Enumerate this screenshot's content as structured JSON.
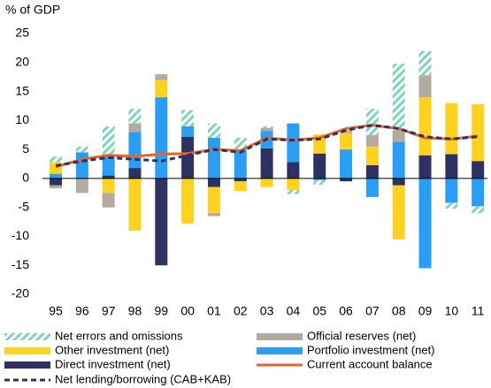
{
  "chart_data": {
    "type": "bar",
    "title": "% of GDP",
    "categories": [
      "95",
      "96",
      "97",
      "98",
      "99",
      "00",
      "01",
      "02",
      "03",
      "04",
      "05",
      "06",
      "07",
      "08",
      "09",
      "10",
      "11"
    ],
    "ylim": [
      -20,
      25
    ],
    "yticks": [
      -20,
      -15,
      -10,
      -5,
      0,
      5,
      10,
      15,
      20,
      25
    ],
    "series": [
      {
        "name": "Net errors and omissions",
        "color": "#7fd3bd",
        "kind": "bar",
        "hatched": true,
        "values": [
          1,
          1,
          5,
          2.5,
          0,
          2.8,
          2.5,
          2,
          0.3,
          -0.7,
          -0.8,
          0,
          4.5,
          11.5,
          4.2,
          -1,
          -1.2
        ]
      },
      {
        "name": "Official reserves (net)",
        "color": "#b3aaa2",
        "kind": "bar",
        "values": [
          -0.5,
          -2.5,
          -2.5,
          1.5,
          1,
          0,
          -0.5,
          0,
          0.5,
          0,
          0,
          0.5,
          2,
          2,
          3.8,
          0,
          0
        ]
      },
      {
        "name": "Other investment (net)",
        "color": "#ffd21f",
        "kind": "bar",
        "values": [
          2,
          0,
          -2.5,
          -9,
          3,
          -7.8,
          -4.5,
          -1.7,
          -1.5,
          -2,
          3.3,
          2.8,
          3.2,
          -9.3,
          10,
          8.8,
          9.8
        ]
      },
      {
        "name": "Portfolio investment (net)",
        "color": "#2a9df4",
        "kind": "bar",
        "values": [
          0.8,
          4.5,
          3.5,
          6.2,
          14,
          1.8,
          7,
          5,
          3,
          6.7,
          -0.3,
          5,
          -3.2,
          6.3,
          -15.5,
          -4.2,
          -4.8
        ]
      },
      {
        "name": "Direct investment (net)",
        "color": "#2e3162",
        "kind": "bar",
        "values": [
          -1.2,
          0,
          0.5,
          1.8,
          -15,
          7.2,
          -1.5,
          -0.5,
          5.2,
          2.8,
          4.3,
          -0.5,
          2.3,
          -1.2,
          4,
          4.2,
          3
        ]
      },
      {
        "name": "Current account balance",
        "color": "#e8622a",
        "kind": "line",
        "values": [
          2,
          3.3,
          4,
          3.8,
          4.2,
          4.3,
          5,
          4.8,
          7,
          6.6,
          7,
          8.6,
          9.2,
          8.6,
          7,
          6.8,
          7.3
        ]
      },
      {
        "name": "Net lending/borrowing (CAB+KAB)",
        "color": "#2e3162",
        "kind": "line",
        "dashed": true,
        "values": [
          2.2,
          3,
          3.6,
          3.3,
          3,
          4,
          5,
          4.5,
          6.8,
          6.6,
          6.8,
          8.3,
          9.2,
          8.6,
          7.2,
          6.8,
          7.2
        ]
      }
    ]
  }
}
